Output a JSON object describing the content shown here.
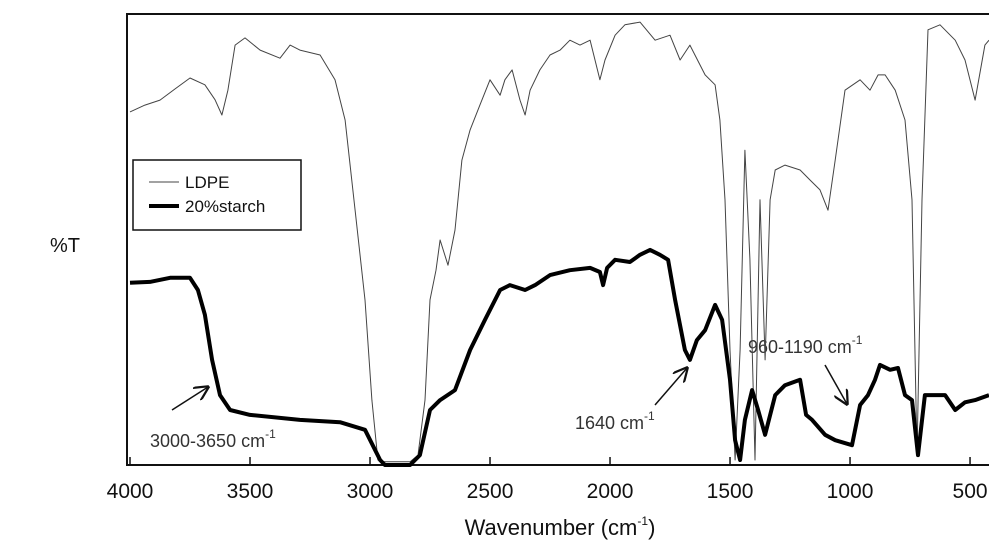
{
  "chart_data": {
    "type": "line",
    "y_label": "%T",
    "x_label": {
      "text": "Wavenumber (cm",
      "sup": "-1",
      "tail": ")"
    },
    "xlim": [
      4000,
      421
    ],
    "xticks": [
      4000,
      3500,
      3000,
      2500,
      2000,
      1500,
      1000,
      500
    ],
    "ylim": [
      0,
      100
    ],
    "legend": "upper left",
    "series": [
      {
        "name": "LDPE",
        "color": "#444444",
        "width": 1,
        "x": [
          4000,
          3938,
          3875,
          3812,
          3750,
          3688,
          3646,
          3617,
          3592,
          3562,
          3521,
          3458,
          3375,
          3333,
          3292,
          3208,
          3146,
          3104,
          3062,
          3021,
          2992,
          2967,
          2938,
          2896,
          2854,
          2833,
          2800,
          2771,
          2750,
          2725,
          2708,
          2675,
          2646,
          2617,
          2583,
          2542,
          2500,
          2458,
          2438,
          2408,
          2375,
          2354,
          2333,
          2292,
          2250,
          2208,
          2167,
          2125,
          2083,
          2042,
          2021,
          1979,
          1938,
          1875,
          1812,
          1750,
          1708,
          1667,
          1604,
          1562,
          1542,
          1521,
          1500,
          1479,
          1458,
          1438,
          1417,
          1396,
          1375,
          1354,
          1333,
          1312,
          1271,
          1208,
          1167,
          1125,
          1092,
          1062,
          1021,
          958,
          917,
          883,
          854,
          812,
          771,
          742,
          721,
          700,
          675,
          625,
          562,
          521,
          479,
          438,
          421
        ],
        "values": [
          78.3,
          79.8,
          80.9,
          83.4,
          85.8,
          84.3,
          81.0,
          77.6,
          83.1,
          93.1,
          94.7,
          92.0,
          90.2,
          93.1,
          92.0,
          90.9,
          85.4,
          76.5,
          56.5,
          36.6,
          14.4,
          1.1,
          0.7,
          0.7,
          0.7,
          0.7,
          2.2,
          14.4,
          36.6,
          43.2,
          49.9,
          44.3,
          52.1,
          67.6,
          74.3,
          79.8,
          85.4,
          82.0,
          85.4,
          87.6,
          80.9,
          77.6,
          83.1,
          87.6,
          90.9,
          92.0,
          94.2,
          93.1,
          94.2,
          85.4,
          89.8,
          95.3,
          97.6,
          98.2,
          94.2,
          95.3,
          89.8,
          93.1,
          86.5,
          84.3,
          76.5,
          58.8,
          25.5,
          1.1,
          25.5,
          69.8,
          45.7,
          1.1,
          58.8,
          23.3,
          58.8,
          65.4,
          66.5,
          65.4,
          63.2,
          61.0,
          56.5,
          67.6,
          83.1,
          85.4,
          83.1,
          86.5,
          86.5,
          83.1,
          76.5,
          58.8,
          2.2,
          58.8,
          96.5,
          97.6,
          94.2,
          89.8,
          80.9,
          93.1,
          94.2
        ]
      },
      {
        "name": "20%starch",
        "color": "#000000",
        "width": 4,
        "x": [
          4000,
          3917,
          3833,
          3750,
          3717,
          3688,
          3658,
          3625,
          3583,
          3500,
          3292,
          3125,
          3021,
          2958,
          2938,
          2833,
          2792,
          2750,
          2708,
          2646,
          2583,
          2521,
          2458,
          2417,
          2354,
          2312,
          2250,
          2167,
          2083,
          2042,
          2029,
          2012,
          1979,
          1917,
          1875,
          1833,
          1792,
          1758,
          1729,
          1688,
          1667,
          1638,
          1604,
          1562,
          1533,
          1500,
          1479,
          1458,
          1438,
          1408,
          1383,
          1354,
          1312,
          1271,
          1208,
          1183,
          1158,
          1104,
          1062,
          992,
          958,
          925,
          896,
          875,
          833,
          800,
          771,
          742,
          717,
          688,
          604,
          562,
          521,
          479,
          421
        ],
        "values": [
          40.4,
          40.6,
          41.5,
          41.5,
          38.8,
          33.3,
          23.3,
          15.5,
          12.2,
          11.1,
          10.0,
          9.5,
          7.8,
          1.1,
          0,
          0,
          2.2,
          12.2,
          14.4,
          16.6,
          25.5,
          32.2,
          38.8,
          39.9,
          38.8,
          39.9,
          42.1,
          43.2,
          43.7,
          42.8,
          39.9,
          43.7,
          45.5,
          45.0,
          46.6,
          47.7,
          46.6,
          45.5,
          36.6,
          25.5,
          23.3,
          27.7,
          29.9,
          35.5,
          32.2,
          18.9,
          5.5,
          1.1,
          10.0,
          16.6,
          12.2,
          6.7,
          15.5,
          17.7,
          18.9,
          11.1,
          10.0,
          6.7,
          5.5,
          4.4,
          13.3,
          15.5,
          18.9,
          22.2,
          21.1,
          21.5,
          15.5,
          14.4,
          2.2,
          15.5,
          15.5,
          12.2,
          13.9,
          14.4,
          15.5
        ]
      }
    ],
    "annotations": [
      {
        "text": "3000-3650 cm",
        "sup": "-1"
      },
      {
        "text": "1640 cm",
        "sup": "-1"
      },
      {
        "text": "960-1190 cm",
        "sup": "-1"
      }
    ]
  }
}
